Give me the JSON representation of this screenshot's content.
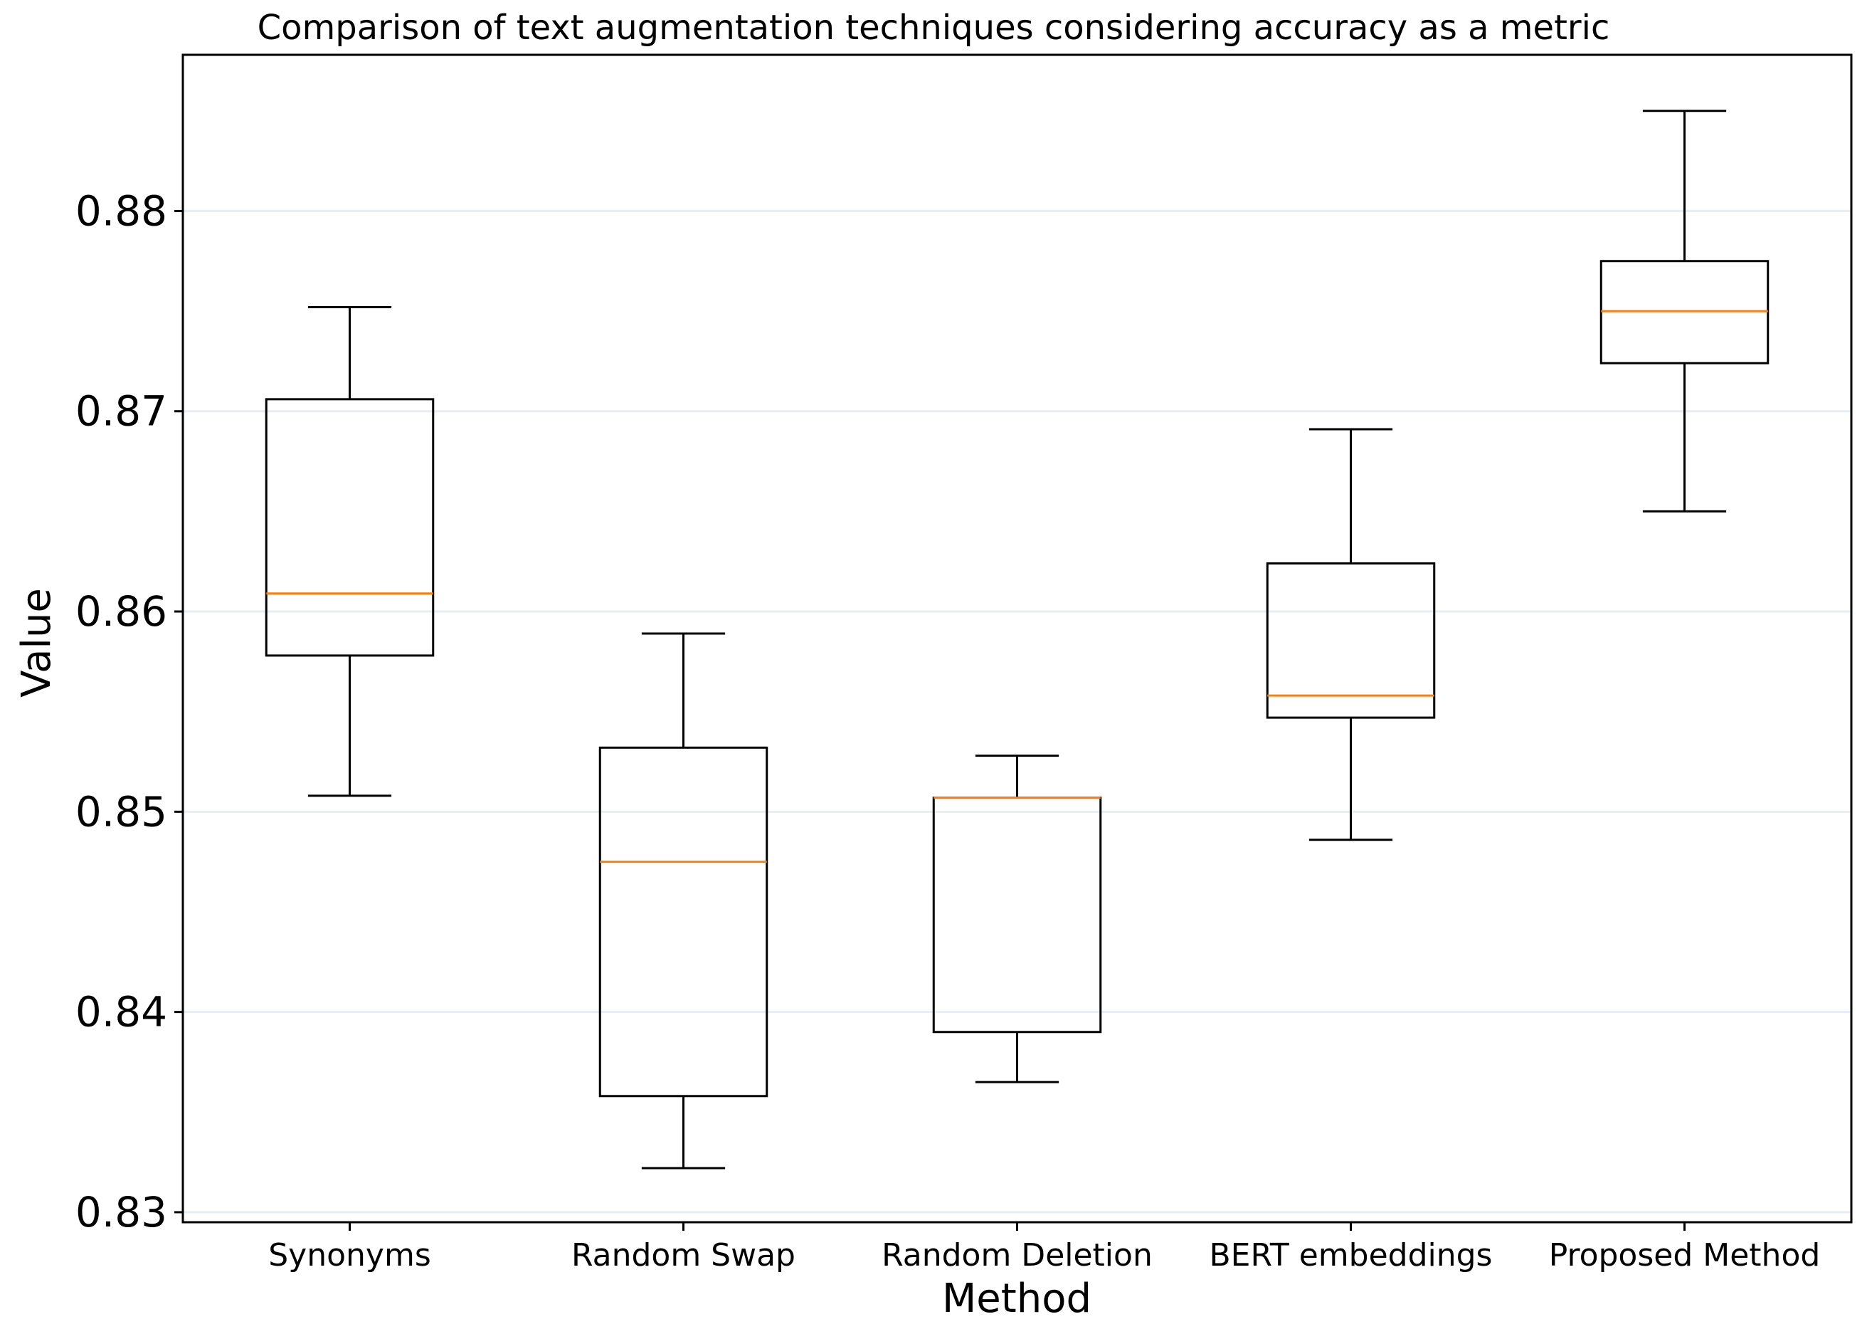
{
  "chart_data": {
    "type": "boxplot",
    "title": "Comparison of text augmentation techniques considering accuracy as a metric",
    "xlabel": "Method",
    "ylabel": "Value",
    "ylim": [
      0.8295,
      0.8878
    ],
    "yticks": [
      0.83,
      0.84,
      0.85,
      0.86,
      0.87,
      0.88
    ],
    "ytick_labels": [
      "0.83",
      "0.84",
      "0.85",
      "0.86",
      "0.87",
      "0.88"
    ],
    "grid": "horizontal",
    "categories": [
      "Synonyms",
      "Random Swap",
      "Random Deletion",
      "BERT embeddings",
      "Proposed Method"
    ],
    "boxes": [
      {
        "name": "Synonyms",
        "whislo": 0.8508,
        "q1": 0.8578,
        "med": 0.8609,
        "q3": 0.8706,
        "whishi": 0.8752
      },
      {
        "name": "Random Swap",
        "whislo": 0.8322,
        "q1": 0.8358,
        "med": 0.8475,
        "q3": 0.8532,
        "whishi": 0.8589
      },
      {
        "name": "Random Deletion",
        "whislo": 0.8365,
        "q1": 0.839,
        "med": 0.8507,
        "q3": 0.8507,
        "whishi": 0.8528
      },
      {
        "name": "BERT embeddings",
        "whislo": 0.8486,
        "q1": 0.8547,
        "med": 0.8558,
        "q3": 0.8624,
        "whishi": 0.8691
      },
      {
        "name": "Proposed Method",
        "whislo": 0.865,
        "q1": 0.8724,
        "med": 0.875,
        "q3": 0.8775,
        "whishi": 0.885
      }
    ],
    "colors": {
      "box": "#000000",
      "median": "#ff7f0e",
      "grid": "#e6eef4"
    }
  }
}
